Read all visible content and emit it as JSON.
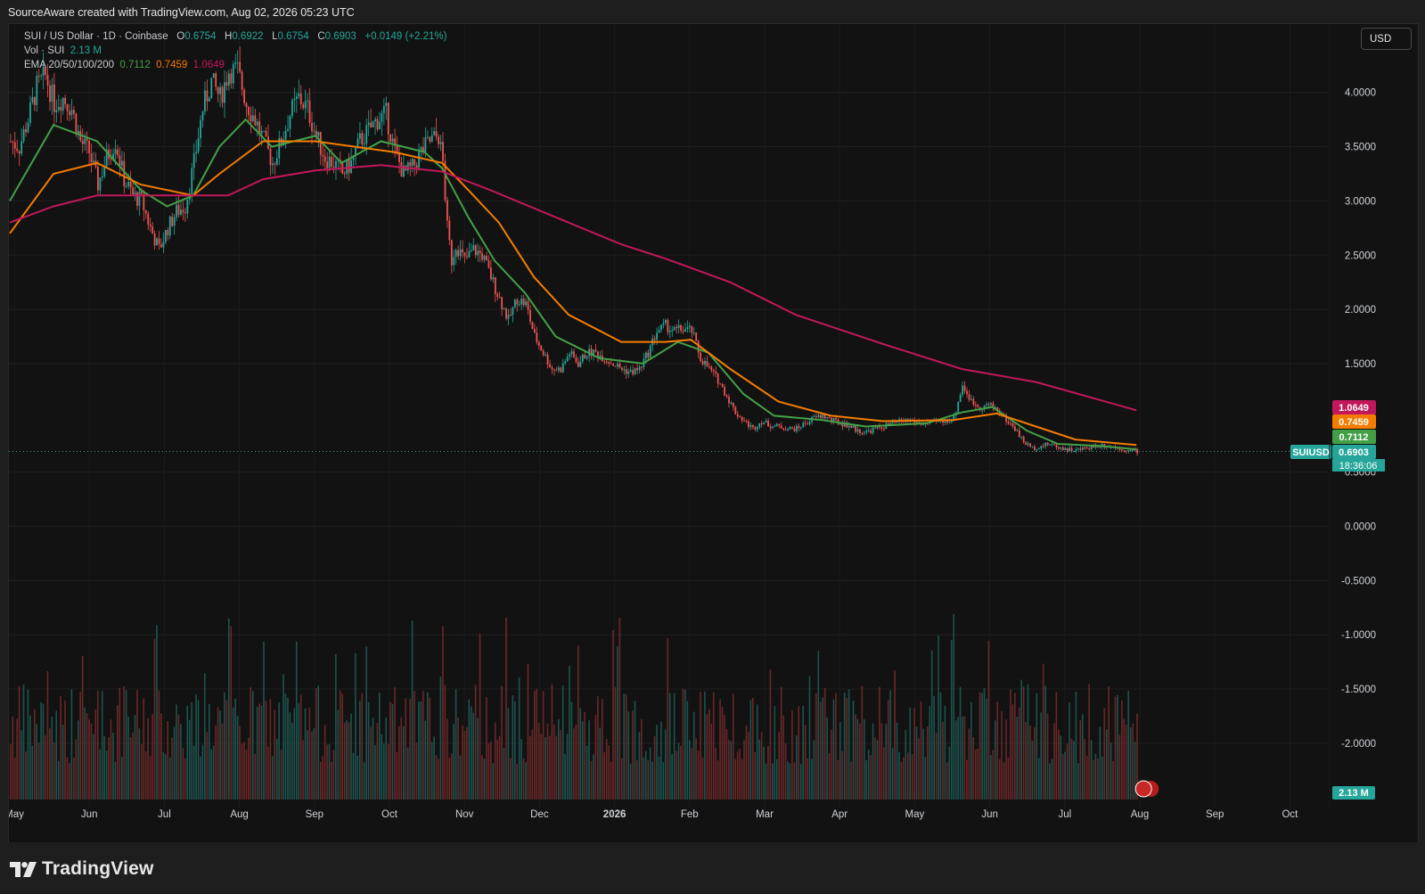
{
  "header": {
    "attribution": "SourceAware created with TradingView.com, Aug 02, 2026 05:23 UTC"
  },
  "legend": {
    "symbol": "SUI / US Dollar · 1D · Coinbase",
    "o_label": "O",
    "o": "0.6754",
    "h_label": "H",
    "h": "0.6922",
    "l_label": "L",
    "l": "0.6754",
    "c_label": "C",
    "c": "0.6903",
    "change": "+0.0149 (+2.21%)",
    "vol_label": "Vol · SUI",
    "vol_value": "2.13 M",
    "ema_label": "EMA 20/50/100/200",
    "ema20": "0.7112",
    "ema50": "0.7459",
    "ema200": "1.0649"
  },
  "currency_button": "USD",
  "footer": {
    "brand": "TradingView"
  },
  "colors": {
    "up": "#26a69a",
    "down": "#ef5350",
    "ema20": "#43a047",
    "ema50": "#f57c00",
    "ema200": "#c2185b",
    "bg": "#121212"
  },
  "chart_data": {
    "type": "candlestick",
    "symbol": "SUIUSD",
    "timeframe": "1D",
    "y_axis": {
      "ticks": [
        "4.0000",
        "3.5000",
        "3.0000",
        "2.5000",
        "2.0000",
        "1.5000",
        "0.5000",
        "0.0000",
        "-0.5000",
        "-1.0000",
        "-1.5000",
        "-2.0000"
      ],
      "ylim": [
        -2.5,
        4.7
      ]
    },
    "x_axis": {
      "ticks": [
        "May",
        "Jun",
        "Jul",
        "Aug",
        "Sep",
        "Oct",
        "Nov",
        "Dec",
        "2026",
        "Feb",
        "Mar",
        "Apr",
        "May",
        "Jun",
        "Jul",
        "Aug",
        "Sep",
        "Oct"
      ]
    },
    "price_path": [
      [
        0,
        3.55
      ],
      [
        4,
        3.5
      ],
      [
        8,
        3.75
      ],
      [
        12,
        4.05
      ],
      [
        16,
        4.15
      ],
      [
        20,
        3.9
      ],
      [
        24,
        3.95
      ],
      [
        28,
        3.85
      ],
      [
        32,
        3.55
      ],
      [
        36,
        3.45
      ],
      [
        40,
        3.15
      ],
      [
        44,
        3.4
      ],
      [
        48,
        3.55
      ],
      [
        52,
        3.2
      ],
      [
        56,
        3.05
      ],
      [
        60,
        3.0
      ],
      [
        64,
        2.75
      ],
      [
        68,
        2.55
      ],
      [
        72,
        2.75
      ],
      [
        76,
        2.9
      ],
      [
        80,
        2.95
      ],
      [
        84,
        3.35
      ],
      [
        88,
        3.85
      ],
      [
        92,
        4.1
      ],
      [
        96,
        3.95
      ],
      [
        100,
        4.2
      ],
      [
        104,
        4.2
      ],
      [
        108,
        3.9
      ],
      [
        112,
        3.75
      ],
      [
        116,
        3.55
      ],
      [
        120,
        3.35
      ],
      [
        124,
        3.55
      ],
      [
        128,
        3.8
      ],
      [
        132,
        3.95
      ],
      [
        136,
        3.85
      ],
      [
        140,
        3.6
      ],
      [
        144,
        3.4
      ],
      [
        148,
        3.35
      ],
      [
        152,
        3.25
      ],
      [
        156,
        3.35
      ],
      [
        160,
        3.55
      ],
      [
        164,
        3.65
      ],
      [
        168,
        3.75
      ],
      [
        172,
        3.8
      ],
      [
        176,
        3.45
      ],
      [
        180,
        3.25
      ],
      [
        184,
        3.3
      ],
      [
        188,
        3.45
      ],
      [
        192,
        3.55
      ],
      [
        196,
        3.6
      ],
      [
        198,
        3.35
      ],
      [
        200,
        2.75
      ],
      [
        202,
        2.45
      ],
      [
        204,
        2.6
      ],
      [
        208,
        2.45
      ],
      [
        212,
        2.55
      ],
      [
        216,
        2.5
      ],
      [
        220,
        2.3
      ],
      [
        224,
        2.1
      ],
      [
        228,
        1.9
      ],
      [
        232,
        2.1
      ],
      [
        236,
        2.05
      ],
      [
        240,
        1.75
      ],
      [
        244,
        1.6
      ],
      [
        248,
        1.45
      ],
      [
        252,
        1.45
      ],
      [
        256,
        1.6
      ],
      [
        260,
        1.5
      ],
      [
        264,
        1.6
      ],
      [
        268,
        1.6
      ],
      [
        272,
        1.55
      ],
      [
        276,
        1.5
      ],
      [
        280,
        1.45
      ],
      [
        284,
        1.42
      ],
      [
        288,
        1.45
      ],
      [
        292,
        1.6
      ],
      [
        296,
        1.8
      ],
      [
        300,
        1.85
      ],
      [
        304,
        1.8
      ],
      [
        308,
        1.82
      ],
      [
        312,
        1.8
      ],
      [
        316,
        1.55
      ],
      [
        320,
        1.45
      ],
      [
        324,
        1.35
      ],
      [
        328,
        1.2
      ],
      [
        332,
        1.05
      ],
      [
        336,
        0.97
      ],
      [
        340,
        0.9
      ],
      [
        344,
        0.97
      ],
      [
        348,
        0.93
      ],
      [
        352,
        0.92
      ],
      [
        356,
        0.9
      ],
      [
        360,
        0.9
      ],
      [
        364,
        0.95
      ],
      [
        368,
        1.0
      ],
      [
        372,
        1.02
      ],
      [
        376,
        0.98
      ],
      [
        380,
        0.95
      ],
      [
        384,
        0.93
      ],
      [
        388,
        0.88
      ],
      [
        392,
        0.87
      ],
      [
        396,
        0.9
      ],
      [
        400,
        0.92
      ],
      [
        404,
        0.95
      ],
      [
        408,
        0.97
      ],
      [
        412,
        0.98
      ],
      [
        416,
        0.95
      ],
      [
        420,
        0.95
      ],
      [
        424,
        0.96
      ],
      [
        428,
        0.97
      ],
      [
        432,
        1.0
      ],
      [
        436,
        1.3
      ],
      [
        440,
        1.15
      ],
      [
        444,
        1.1
      ],
      [
        448,
        1.12
      ],
      [
        452,
        1.08
      ],
      [
        456,
        0.98
      ],
      [
        460,
        0.9
      ],
      [
        464,
        0.78
      ],
      [
        468,
        0.72
      ],
      [
        472,
        0.74
      ],
      [
        476,
        0.76
      ],
      [
        480,
        0.73
      ],
      [
        484,
        0.71
      ],
      [
        488,
        0.7
      ],
      [
        492,
        0.72
      ],
      [
        496,
        0.74
      ],
      [
        500,
        0.75
      ],
      [
        504,
        0.74
      ],
      [
        508,
        0.72
      ],
      [
        512,
        0.7
      ],
      [
        516,
        0.69
      ]
    ],
    "series": [
      {
        "name": "SUIUSD",
        "last": 0.6903,
        "label": "SUIUSD",
        "countdown": "18:36:06"
      },
      {
        "name": "EMA 20",
        "last": 0.7112,
        "path": [
          [
            0,
            3.0
          ],
          [
            20,
            3.7
          ],
          [
            40,
            3.55
          ],
          [
            60,
            3.1
          ],
          [
            72,
            2.95
          ],
          [
            84,
            3.05
          ],
          [
            96,
            3.5
          ],
          [
            108,
            3.75
          ],
          [
            120,
            3.5
          ],
          [
            140,
            3.6
          ],
          [
            152,
            3.35
          ],
          [
            170,
            3.55
          ],
          [
            190,
            3.45
          ],
          [
            198,
            3.3
          ],
          [
            210,
            2.85
          ],
          [
            222,
            2.45
          ],
          [
            236,
            2.15
          ],
          [
            250,
            1.75
          ],
          [
            270,
            1.55
          ],
          [
            290,
            1.5
          ],
          [
            306,
            1.7
          ],
          [
            320,
            1.6
          ],
          [
            336,
            1.22
          ],
          [
            350,
            1.02
          ],
          [
            372,
            0.98
          ],
          [
            392,
            0.92
          ],
          [
            420,
            0.95
          ],
          [
            436,
            1.05
          ],
          [
            450,
            1.1
          ],
          [
            466,
            0.88
          ],
          [
            480,
            0.76
          ],
          [
            500,
            0.74
          ],
          [
            516,
            0.71
          ]
        ]
      },
      {
        "name": "EMA 50",
        "last": 0.7459,
        "path": [
          [
            0,
            2.7
          ],
          [
            20,
            3.25
          ],
          [
            40,
            3.35
          ],
          [
            60,
            3.15
          ],
          [
            84,
            3.05
          ],
          [
            96,
            3.25
          ],
          [
            116,
            3.55
          ],
          [
            140,
            3.55
          ],
          [
            176,
            3.45
          ],
          [
            198,
            3.35
          ],
          [
            210,
            3.1
          ],
          [
            224,
            2.8
          ],
          [
            240,
            2.3
          ],
          [
            256,
            1.95
          ],
          [
            280,
            1.7
          ],
          [
            300,
            1.7
          ],
          [
            312,
            1.72
          ],
          [
            330,
            1.45
          ],
          [
            352,
            1.15
          ],
          [
            376,
            1.02
          ],
          [
            400,
            0.97
          ],
          [
            432,
            0.98
          ],
          [
            452,
            1.04
          ],
          [
            470,
            0.92
          ],
          [
            488,
            0.8
          ],
          [
            516,
            0.75
          ]
        ]
      },
      {
        "name": "EMA 200",
        "last": 1.0649,
        "path": [
          [
            0,
            2.8
          ],
          [
            20,
            2.95
          ],
          [
            40,
            3.05
          ],
          [
            70,
            3.05
          ],
          [
            100,
            3.05
          ],
          [
            116,
            3.2
          ],
          [
            140,
            3.28
          ],
          [
            170,
            3.33
          ],
          [
            198,
            3.27
          ],
          [
            220,
            3.1
          ],
          [
            250,
            2.85
          ],
          [
            280,
            2.6
          ],
          [
            300,
            2.47
          ],
          [
            330,
            2.25
          ],
          [
            360,
            1.95
          ],
          [
            400,
            1.68
          ],
          [
            436,
            1.45
          ],
          [
            470,
            1.33
          ],
          [
            516,
            1.07
          ]
        ]
      }
    ],
    "price_labels": [
      "1.0649",
      "0.7459",
      "0.7112",
      "0.6903"
    ],
    "volume": {
      "label": "2.13 M"
    }
  }
}
